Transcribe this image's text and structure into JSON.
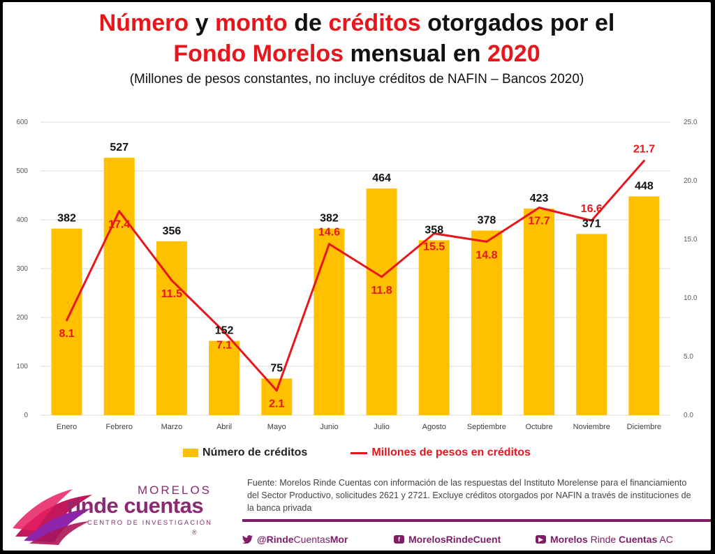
{
  "title": {
    "w1": "Número",
    "w2": " y ",
    "w3": "monto",
    "w4": " de ",
    "w5": "créditos",
    "w6": " otorgados por el",
    "w7": "Fondo Morelos",
    "w8": " mensual en ",
    "w9": "2020"
  },
  "subtitle": "(Millones de pesos constantes, no incluye créditos de NAFIN – Bancos 2020)",
  "colors": {
    "bar": "#ffc000",
    "line": "#e8161c",
    "brand": "#8b2a70"
  },
  "chart_data": {
    "type": "bar+line",
    "categories": [
      "Enero",
      "Febrero",
      "Marzo",
      "Abril",
      "Mayo",
      "Junio",
      "Julio",
      "Agosto",
      "Septiembre",
      "Octubre",
      "Noviembre",
      "Diciembre"
    ],
    "series": [
      {
        "name": "Número de créditos",
        "type": "bar",
        "axis": "left",
        "values": [
          382,
          527,
          356,
          152,
          75,
          382,
          464,
          358,
          378,
          423,
          371,
          448
        ]
      },
      {
        "name": "Millones de pesos en créditos",
        "type": "line",
        "axis": "right",
        "values": [
          8.1,
          17.4,
          11.5,
          7.1,
          2.1,
          14.6,
          11.8,
          15.5,
          14.8,
          17.7,
          16.6,
          21.7
        ]
      }
    ],
    "y_left": {
      "range": [
        0,
        600
      ],
      "ticks": [
        "0",
        "100",
        "200",
        "300",
        "400",
        "500",
        "600"
      ]
    },
    "y_right": {
      "range": [
        0,
        25
      ],
      "ticks": [
        "0.0",
        "5.0",
        "10.0",
        "15.0",
        "20.0",
        "25.0"
      ]
    },
    "grid": true,
    "legend": "bottom"
  },
  "legend": {
    "bar_label": "Número de créditos",
    "line_label": "Millones de pesos en créditos"
  },
  "logo": {
    "top": "MORELOS",
    "main": "rinde cuentas",
    "sub": "CENTRO DE INVESTIGACIÓN",
    "reg": "®"
  },
  "source": "Fuente: Morelos Rinde Cuentas con información de las respuestas del Instituto Morelense para el financiamiento del Sector Productivo, solicitudes 2621 y 2721. Excluye créditos otorgados por NAFIN a través de instituciones de la banca privada",
  "social": {
    "twitter_a": "@Rinde",
    "twitter_b": "Cuentas",
    "twitter_c": "Mor",
    "facebook": "MorelosRindeCuent",
    "youtube_a": "Morelos",
    "youtube_b": " Rinde ",
    "youtube_c": "Cuentas",
    "youtube_d": " AC"
  }
}
